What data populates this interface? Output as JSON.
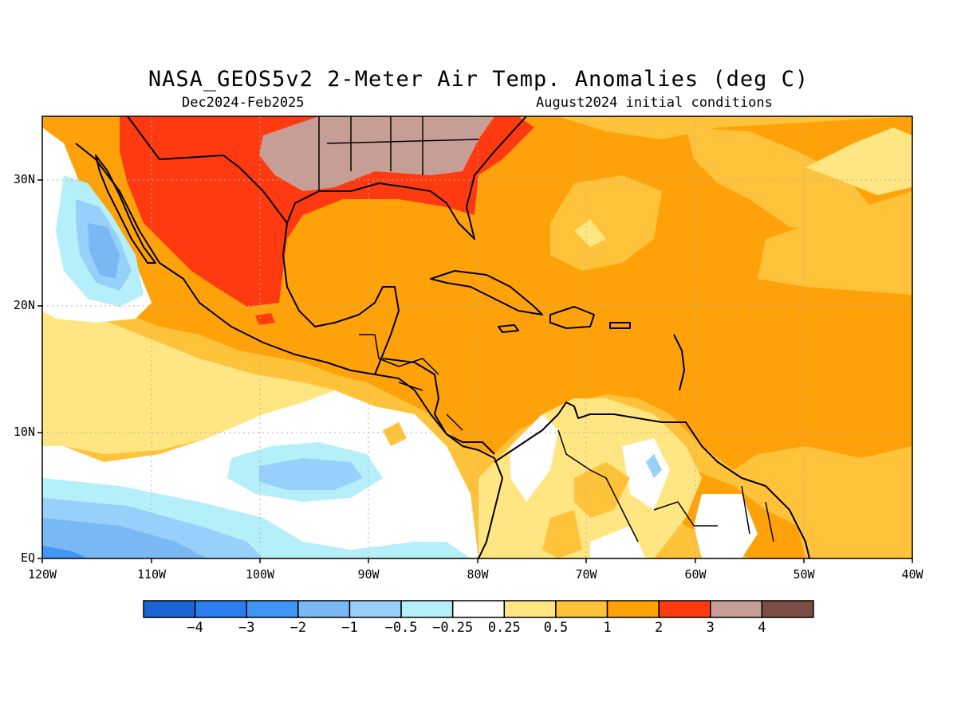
{
  "title": "NASA_GEOS5v2 2-Meter Air Temp. Anomalies (deg C)",
  "subtitle_left": "Dec2024-Feb2025",
  "subtitle_right": "August2024 initial conditions",
  "lat_labels": [
    "30N",
    "20N",
    "10N",
    "EQ"
  ],
  "lon_labels": [
    "120W",
    "110W",
    "100W",
    "90W",
    "80W",
    "70W",
    "60W",
    "50W",
    "40W"
  ],
  "colorbar": {
    "colors": [
      "#1b64d6",
      "#2a7ef0",
      "#3f96f4",
      "#78b8f5",
      "#97d0fa",
      "#b5f0fa",
      "#ffffff",
      "#ffe682",
      "#ffc23b",
      "#ffa20a",
      "#ff3a10",
      "#c79e95",
      "#7a4e45"
    ],
    "labels": [
      "-4",
      "-3",
      "-2",
      "-1",
      "-0.5",
      "-0.25",
      "0.25",
      "0.5",
      "1",
      "2",
      "3",
      "4"
    ]
  },
  "map_extent": {
    "lon_min": -120,
    "lon_max": -40,
    "lat_min": 0,
    "lat_max": 35
  }
}
